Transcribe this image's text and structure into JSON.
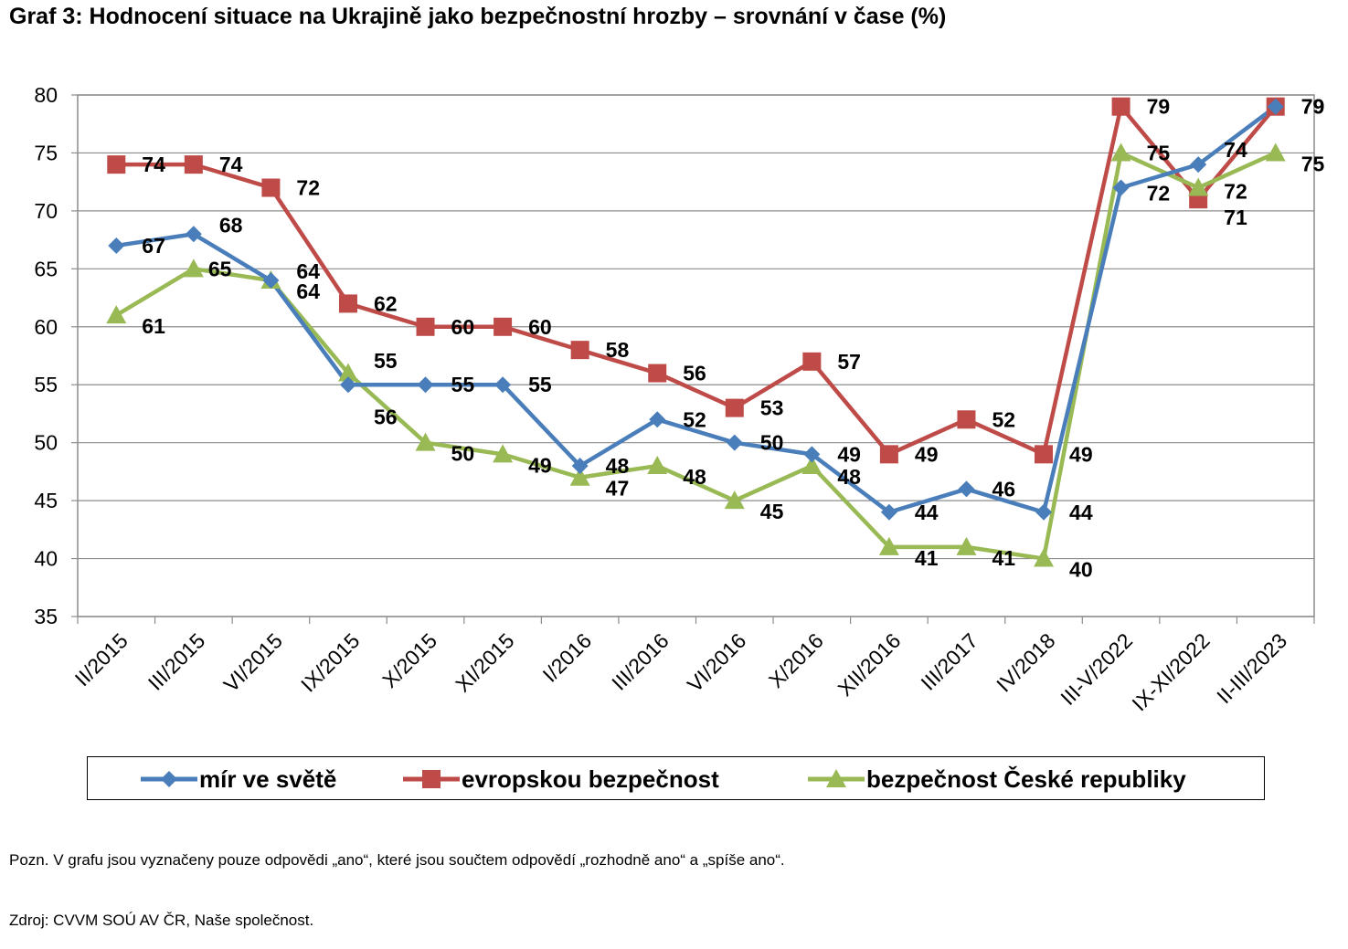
{
  "title": "Graf 3: Hodnocení situace na Ukrajině jako bezpečnostní hrozby – srovnání v čase (%)",
  "chart_data": {
    "type": "line",
    "title": "Graf 3: Hodnocení situace na Ukrajině jako bezpečnostní hrozby – srovnání v čase (%)",
    "categories": [
      "II/2015",
      "III/2015",
      "VI/2015",
      "IX/2015",
      "X/2015",
      "XI/2015",
      "I/2016",
      "III/2016",
      "VI/2016",
      "X/2016",
      "XII/2016",
      "III/2017",
      "IV/2018",
      "III-V/2022",
      "IX-XI/2022",
      "II-III/2023"
    ],
    "ylim": [
      35,
      80
    ],
    "yticks": [
      35,
      40,
      45,
      50,
      55,
      60,
      65,
      70,
      75,
      80
    ],
    "grid": true,
    "legend_position": "bottom",
    "series": [
      {
        "name": "mír ve světě",
        "color": "#4a7ebb",
        "marker": "diamond",
        "values": [
          67,
          68,
          64,
          55,
          55,
          55,
          48,
          52,
          50,
          49,
          44,
          46,
          44,
          72,
          74,
          79
        ]
      },
      {
        "name": "evropskou bezpečnost",
        "color": "#be4b48",
        "marker": "square",
        "values": [
          74,
          74,
          72,
          62,
          60,
          60,
          58,
          56,
          53,
          57,
          49,
          52,
          49,
          79,
          71,
          79
        ]
      },
      {
        "name": "bezpečnost České republiky",
        "color": "#98b954",
        "marker": "triangle",
        "values": [
          61,
          65,
          64,
          56,
          50,
          49,
          47,
          48,
          45,
          48,
          41,
          41,
          40,
          75,
          72,
          75
        ]
      }
    ]
  },
  "note": "Pozn. V grafu jsou vyznačeny pouze odpovědi „ano“, které jsou součtem odpovědí „rozhodně ano“ a „spíše ano“.",
  "source": "Zdroj: CVVM SOÚ AV ČR, Naše společnost."
}
